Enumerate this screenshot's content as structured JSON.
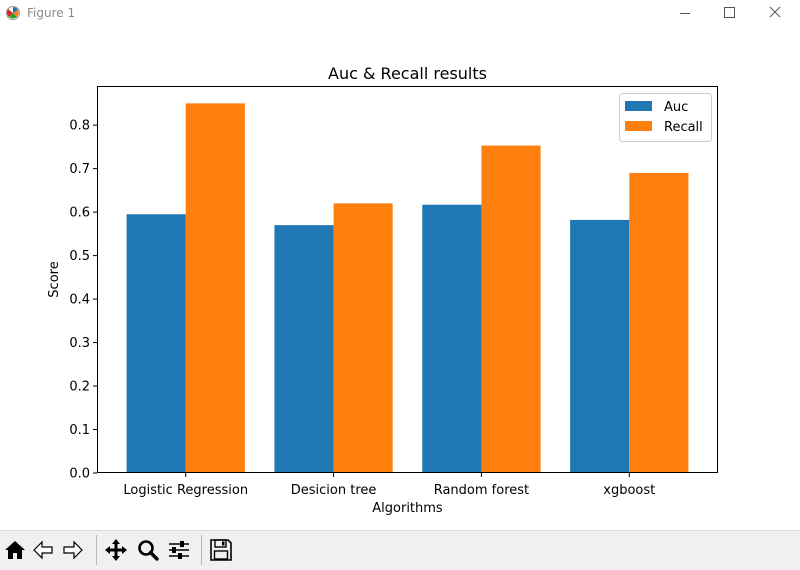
{
  "window": {
    "title": "Figure 1"
  },
  "toolbar": {
    "buttons": [
      "home-icon",
      "back-icon",
      "forward-icon",
      "pan-icon",
      "zoom-icon",
      "configure-subplots-icon",
      "save-icon"
    ]
  },
  "colors": {
    "auc": "#1f77b4",
    "recall": "#ff7f0e"
  },
  "chart_data": {
    "type": "bar",
    "title": "Auc & Recall results",
    "xlabel": "Algorithms",
    "ylabel": "Score",
    "categories": [
      "Logistic Regression",
      "Desicion tree",
      "Random forest",
      "xgboost"
    ],
    "series": [
      {
        "name": "Auc",
        "values": [
          0.595,
          0.57,
          0.617,
          0.582
        ]
      },
      {
        "name": "Recall",
        "values": [
          0.85,
          0.62,
          0.753,
          0.69
        ]
      }
    ],
    "ylim": [
      0,
      0.89
    ],
    "yticks": [
      "0.0",
      "0.1",
      "0.2",
      "0.3",
      "0.4",
      "0.5",
      "0.6",
      "0.7",
      "0.8"
    ],
    "legend": "top-right",
    "grid": false
  }
}
